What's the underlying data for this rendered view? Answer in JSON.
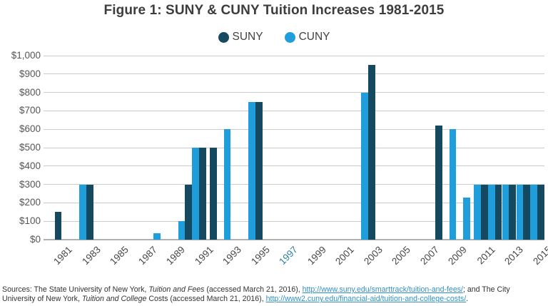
{
  "figure": {
    "title": "Figure 1: SUNY & CUNY Tuition Increases 1981-2015"
  },
  "chart_data": {
    "type": "bar",
    "title": "Figure 1: SUNY & CUNY Tuition Increases 1981-2015",
    "description": "Annual dollar amount of tuition increases at SUNY and CUNY by year",
    "x_domain": [
      1981,
      2015
    ],
    "x_tick_labels": [
      "1981",
      "1983",
      "1985",
      "1987",
      "1989",
      "1991",
      "1993",
      "1995",
      "1997",
      "1999",
      "2001",
      "2003",
      "2005",
      "2007",
      "2009",
      "2011",
      "2013",
      "2015"
    ],
    "highlighted_x_tick": "1997",
    "ylim": [
      0,
      1000
    ],
    "ytick_step": 100,
    "ytick_labels": [
      "$0",
      "$100",
      "$200",
      "$300",
      "$400",
      "$500",
      "$600",
      "$700",
      "$800",
      "$900",
      "$1,000"
    ],
    "grid": true,
    "legend_position": "top-center",
    "series": [
      {
        "name": "SUNY",
        "color": "#15495f",
        "values_by_year": {
          "1981": 150,
          "1983": 300,
          "1990": 300,
          "1991": 500,
          "1992": 500,
          "1995": 750,
          "2003": 950,
          "2008": 620,
          "2011": 300,
          "2012": 300,
          "2013": 300,
          "2014": 300,
          "2015": 300
        }
      },
      {
        "name": "CUNY",
        "color": "#209edb",
        "values_by_year": {
          "1983": 300,
          "1988": 35,
          "1990": 100,
          "1991": 500,
          "1993": 600,
          "1995": 750,
          "2003": 800,
          "2009": 600,
          "2010": 230,
          "2011": 300,
          "2012": 300,
          "2013": 300,
          "2014": 300,
          "2015": 300
        }
      }
    ]
  },
  "colors": {
    "grid": "#cacaca",
    "axis_line": "#b0b0b0",
    "title_text": "#3d3d3d",
    "y_tick_text": "#565656",
    "x_tick_text": "#474747",
    "x_tick_highlight": "#2b7fab",
    "link": "#3191c5",
    "footer_text": "#333333"
  },
  "footer": {
    "lines": [
      [
        {
          "text": "Sources: The State University of New York, ",
          "style": "plain"
        },
        {
          "text": "Tuition and Fees",
          "style": "italic"
        },
        {
          "text": " (accessed March 21, 2016), ",
          "style": "plain"
        },
        {
          "text": "http://www.suny.edu/smarttrack/tuition-and-fees/",
          "style": "link"
        },
        {
          "text": "; and The City",
          "style": "plain"
        }
      ],
      [
        {
          "text": "University of New York, ",
          "style": "plain"
        },
        {
          "text": "Tuition and College",
          "style": "italic"
        },
        {
          "text": " Costs (accessed March 21, 2016), ",
          "style": "plain"
        },
        {
          "text": "http://www2.cuny.edu/financial-aid/tuition-and-college-costs/",
          "style": "link"
        },
        {
          "text": ".",
          "style": "plain"
        }
      ]
    ]
  }
}
